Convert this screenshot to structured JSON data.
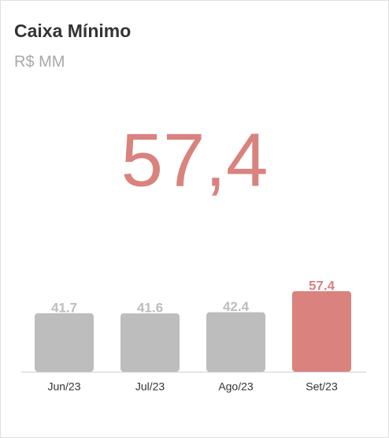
{
  "header": {
    "title": "Caixa Mínimo",
    "subtitle": "R$ MM"
  },
  "kpi": {
    "value": 57.4,
    "label": "57,4",
    "color": "#d9827e"
  },
  "chart_data": {
    "type": "bar",
    "categories": [
      "Jun/23",
      "Jul/23",
      "Ago/23",
      "Set/23"
    ],
    "values": [
      41.7,
      41.6,
      42.4,
      57.4
    ],
    "colors": [
      "#bdbdbd",
      "#bdbdbd",
      "#bdbdbd",
      "#d9827e"
    ]
  }
}
